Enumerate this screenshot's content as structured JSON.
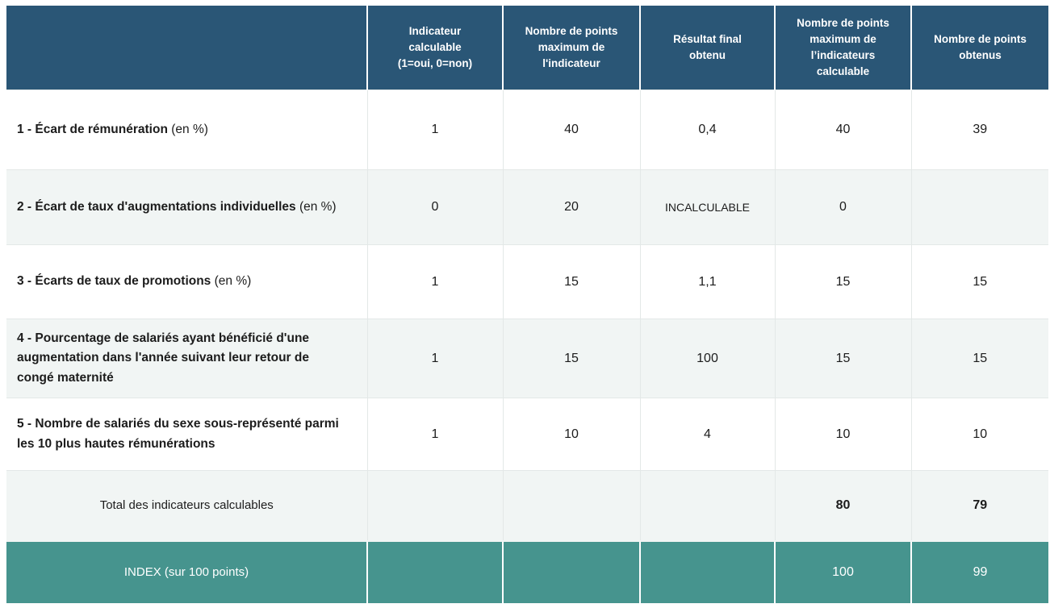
{
  "colors": {
    "header_background": "#2a5676",
    "header_text": "#ffffff",
    "index_row_background": "#46948e",
    "index_row_text": "#ffffff",
    "stripe_row_background": "#f1f5f4",
    "body_text": "#1c1c1c",
    "grid_line": "#e3e8e7"
  },
  "table": {
    "header": [
      "",
      "Indicateur\ncalculable\n(1=oui, 0=non)",
      "Nombre de points\nmaximum de\nl'indicateur",
      "Résultat final\nobtenu",
      "Nombre de points\nmaximum de\nl’indicateurs\ncalculable",
      "Nombre de points\nobtenus"
    ],
    "rows": [
      {
        "title": "1 - Écart de rémunération",
        "suffix": "(en %)",
        "cells": [
          "1",
          "40",
          "0,4",
          "40",
          "39"
        ]
      },
      {
        "title": "2 - Écart de taux d'augmentations individuelles",
        "suffix": "(en %)",
        "cells": [
          "0",
          "20",
          "INCALCULABLE",
          "0",
          ""
        ]
      },
      {
        "title": "3 - Écarts de taux de promotions",
        "suffix": "(en %)",
        "cells": [
          "1",
          "15",
          "1,1",
          "15",
          "15"
        ]
      },
      {
        "title": "4 - Pourcentage de salariés ayant bénéficié d'une augmentation dans l'année suivant leur retour de congé maternité",
        "suffix": "",
        "cells": [
          "1",
          "15",
          "100",
          "15",
          "15"
        ]
      },
      {
        "title": "5 - Nombre de salariés du sexe sous-représenté parmi les 10 plus hautes rémunérations",
        "suffix": "",
        "cells": [
          "1",
          "10",
          "4",
          "10",
          "10"
        ]
      }
    ],
    "total_row": {
      "label": "Total des indicateurs calculables",
      "cells": [
        "",
        "",
        "",
        "80",
        "79"
      ]
    },
    "index_row": {
      "label": "INDEX (sur 100 points)",
      "cells": [
        "",
        "",
        "",
        "100",
        "99"
      ]
    }
  },
  "chart_data": {
    "type": "table",
    "columns": [
      "",
      "Indicateur calculable (1=oui, 0=non)",
      "Nombre de points maximum de l'indicateur",
      "Résultat final obtenu",
      "Nombre de points maximum de l’indicateurs calculable",
      "Nombre de points obtenus"
    ],
    "rows": [
      [
        "1 - Écart de rémunération (en %)",
        1,
        40,
        "0,4",
        40,
        39
      ],
      [
        "2 - Écart de taux d'augmentations individuelles (en %)",
        0,
        20,
        "INCALCULABLE",
        0,
        null
      ],
      [
        "3 - Écarts de taux de promotions (en %)",
        1,
        15,
        "1,1",
        15,
        15
      ],
      [
        "4 - Pourcentage de salariés ayant bénéficié d'une augmentation dans l'année suivant leur retour de congé maternité",
        1,
        15,
        100,
        15,
        15
      ],
      [
        "5 - Nombre de salariés du sexe sous-représenté parmi les 10 plus hautes rémunérations",
        1,
        10,
        4,
        10,
        10
      ],
      [
        "Total des indicateurs calculables",
        null,
        null,
        null,
        80,
        79
      ],
      [
        "INDEX (sur 100 points)",
        null,
        null,
        null,
        100,
        99
      ]
    ]
  }
}
